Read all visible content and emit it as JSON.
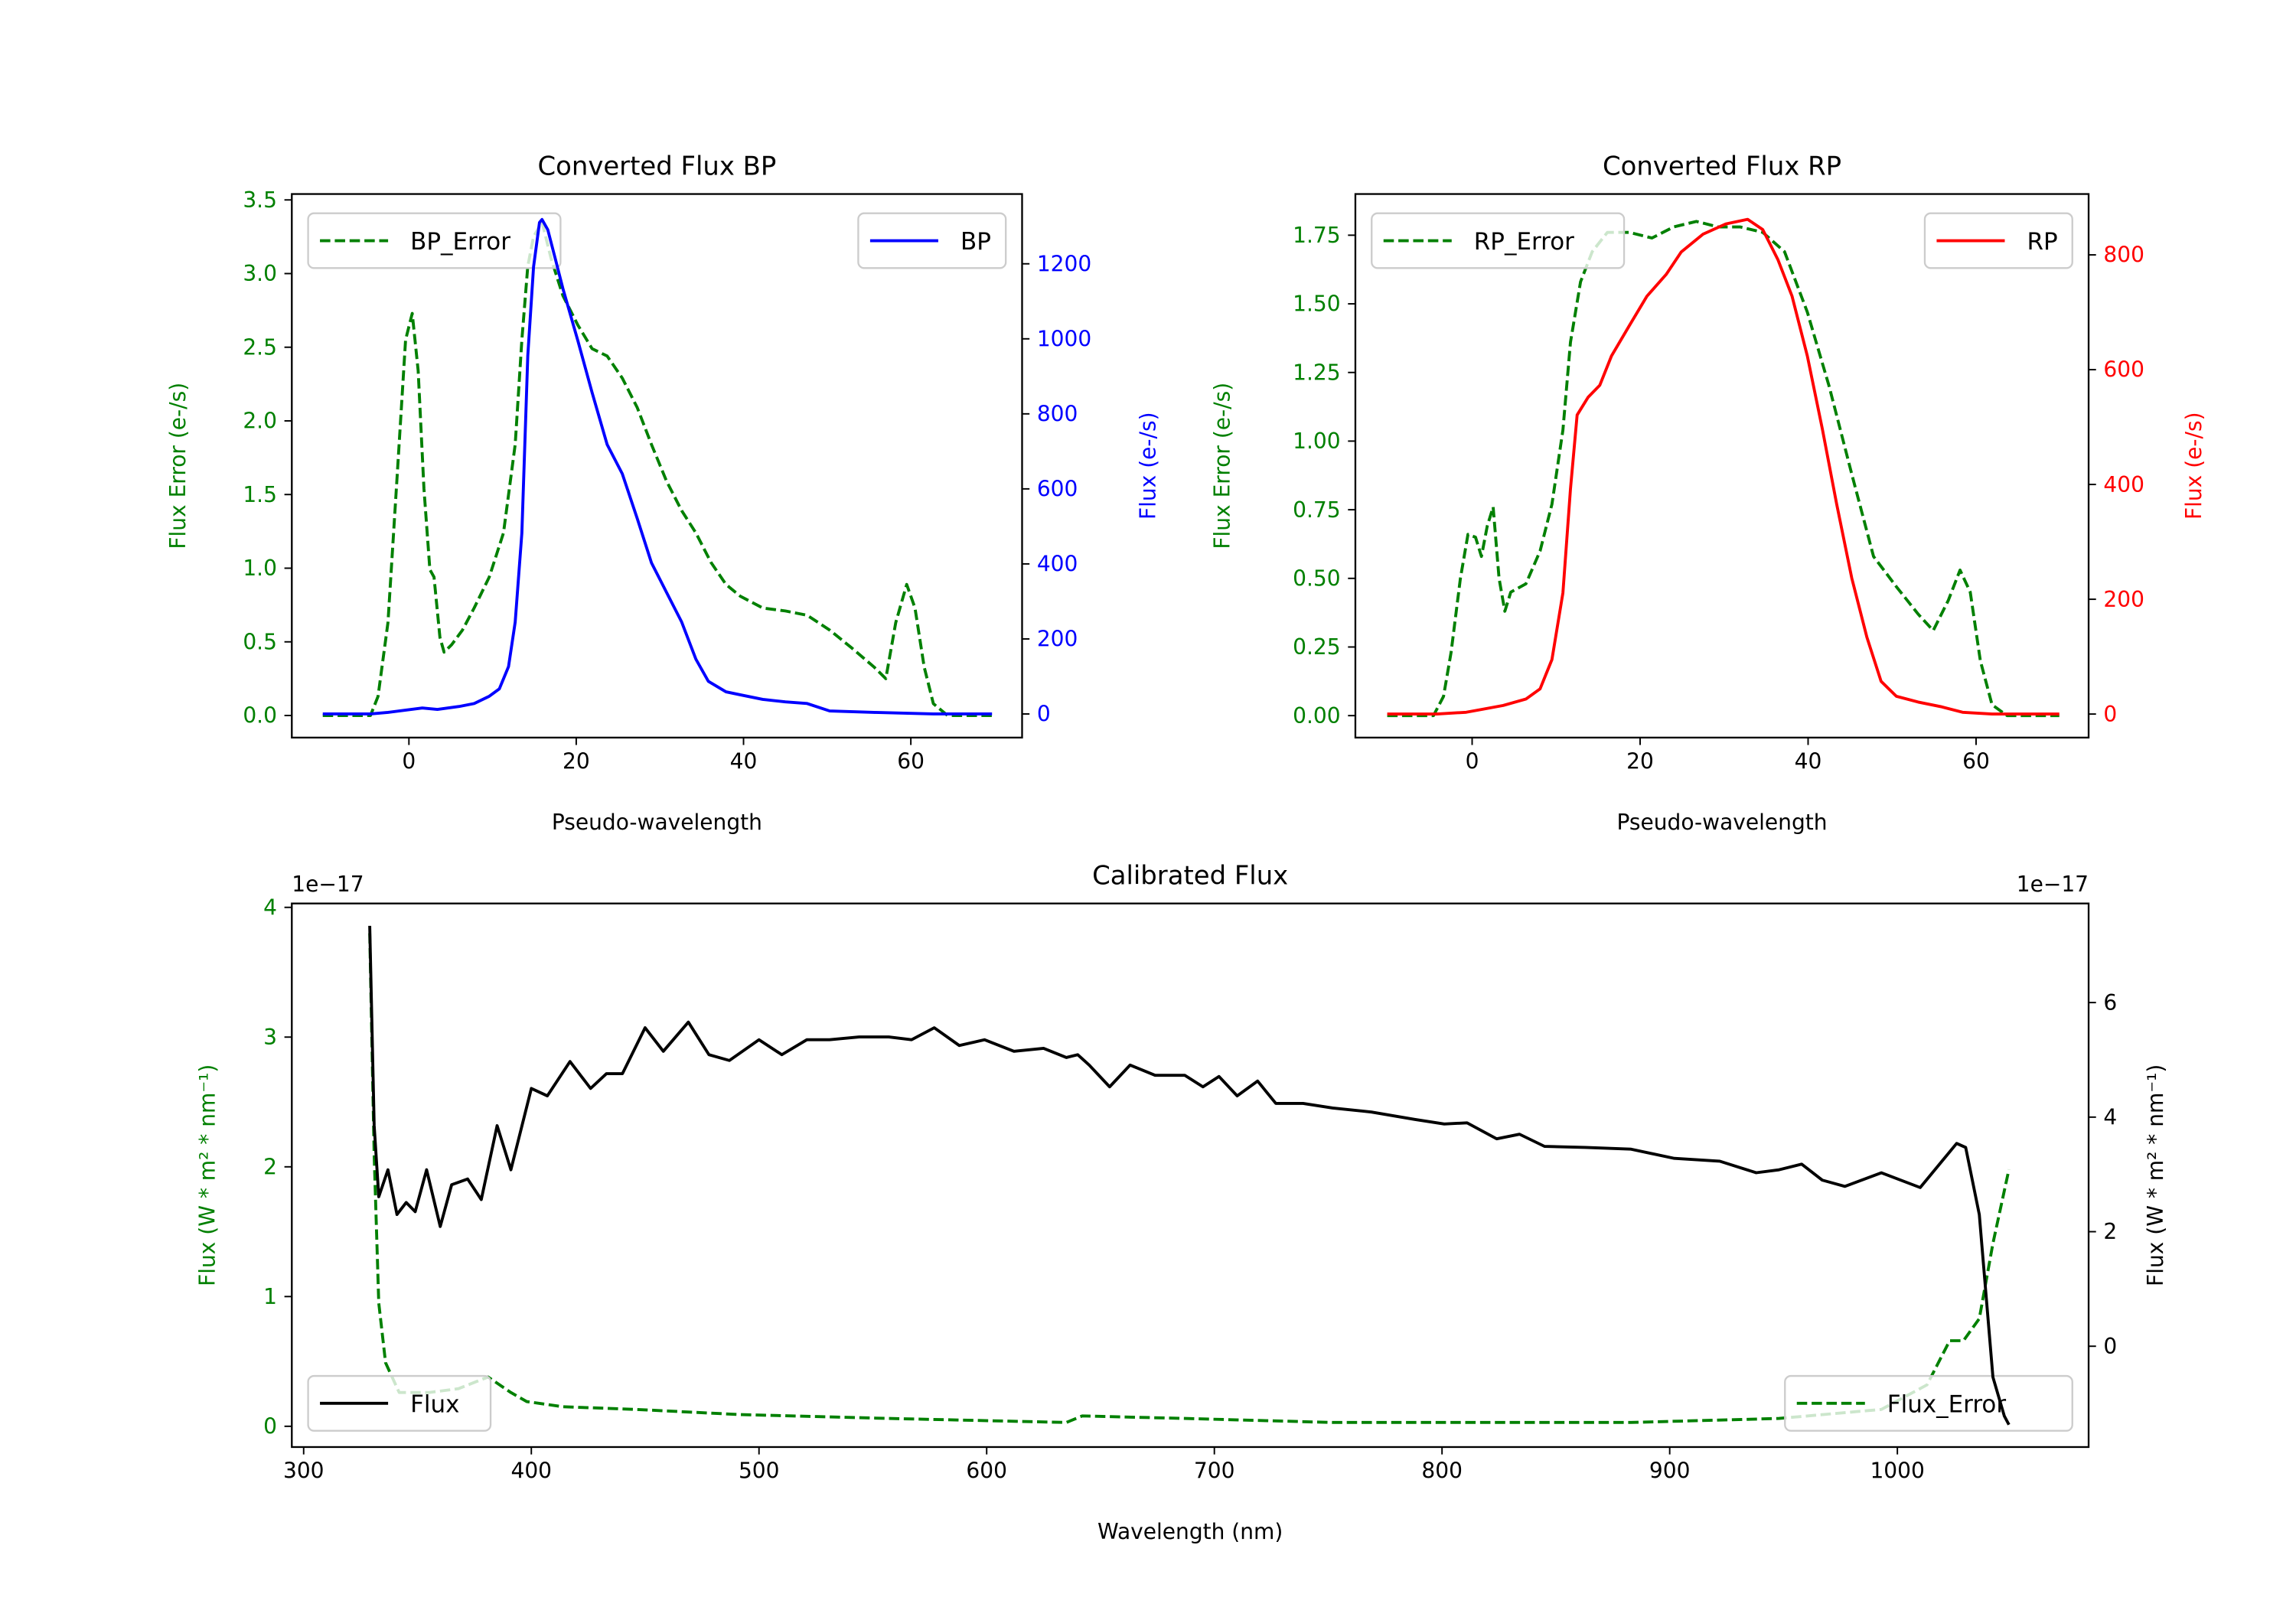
{
  "chart_data": [
    {
      "type": "line",
      "title": "Converted Flux BP",
      "xlabel": "Pseudo-wavelength",
      "ylabel_left": "Flux Error (e-/s)",
      "ylabel_right": "Flux (e-/s)",
      "left_color": "#008000",
      "right_color": "#0000ff",
      "xlim": [
        -14,
        73.3
      ],
      "ylim_left": [
        -0.15,
        3.54
      ],
      "ylim_right": [
        -63,
        1386
      ],
      "xticks": [
        {
          "v": 0,
          "label": "0"
        },
        {
          "v": 20,
          "label": "20"
        },
        {
          "v": 40,
          "label": "40"
        },
        {
          "v": 60,
          "label": "60"
        }
      ],
      "yticks_left": [
        {
          "v": 0,
          "label": "0.0"
        },
        {
          "v": 0.5,
          "label": "0.5"
        },
        {
          "v": 1,
          "label": "1.0"
        },
        {
          "v": 1.5,
          "label": "1.5"
        },
        {
          "v": 2,
          "label": "2.0"
        },
        {
          "v": 2.5,
          "label": "2.5"
        },
        {
          "v": 3,
          "label": "3.0"
        },
        {
          "v": 3.5,
          "label": "3.5"
        }
      ],
      "yticks_right": [
        {
          "v": 0,
          "label": "0"
        },
        {
          "v": 200,
          "label": "200"
        },
        {
          "v": 400,
          "label": "400"
        },
        {
          "v": 600,
          "label": "600"
        },
        {
          "v": 800,
          "label": "800"
        },
        {
          "v": 1000,
          "label": "1000"
        },
        {
          "v": 1200,
          "label": "1200"
        }
      ],
      "series": [
        {
          "name": "BP_Error",
          "axis": "left",
          "color": "#008000",
          "dash": true,
          "legend": "upper left",
          "x": [
            -10.3,
            -4.6,
            -3.7,
            -2.5,
            -1.4,
            -0.4,
            0.4,
            1.1,
            1.8,
            2.5,
            3.0,
            3.7,
            4.2,
            5.1,
            6.4,
            7.8,
            9.6,
            11.3,
            12.7,
            13.5,
            14.2,
            14.9,
            15.9,
            17.0,
            18.4,
            20.2,
            21.9,
            23.7,
            25.5,
            27.3,
            29.0,
            30.8,
            32.6,
            34.3,
            36.1,
            37.9,
            39.6,
            42.3,
            45.0,
            47.6,
            50.3,
            52.9,
            55.6,
            57.0,
            58.2,
            59.5,
            60.5,
            61.6,
            62.7,
            64.4,
            69.7
          ],
          "y": [
            0,
            0,
            0.13,
            0.63,
            1.64,
            2.55,
            2.73,
            2.34,
            1.54,
            0.99,
            0.94,
            0.53,
            0.43,
            0.48,
            0.58,
            0.73,
            0.94,
            1.24,
            1.84,
            2.55,
            3.05,
            3.25,
            3.35,
            3.1,
            2.85,
            2.65,
            2.49,
            2.44,
            2.29,
            2.09,
            1.84,
            1.59,
            1.39,
            1.24,
            1.04,
            0.89,
            0.81,
            0.73,
            0.71,
            0.68,
            0.58,
            0.46,
            0.33,
            0.25,
            0.63,
            0.89,
            0.73,
            0.33,
            0.08,
            0,
            0
          ]
        },
        {
          "name": "BP",
          "axis": "right",
          "color": "#0000ff",
          "dash": false,
          "legend": "upper right",
          "x": [
            -10.3,
            -4.6,
            -2.5,
            1.6,
            3.4,
            6.0,
            7.8,
            9.6,
            10.8,
            11.9,
            12.7,
            13.5,
            14.2,
            14.9,
            15.6,
            15.9,
            16.6,
            17.5,
            18.4,
            20.2,
            21.9,
            23.7,
            25.5,
            27.3,
            29.0,
            30.8,
            32.6,
            34.3,
            35.8,
            37.9,
            39.6,
            42.3,
            45.0,
            47.6,
            50.3,
            55.6,
            62.7,
            69.7
          ],
          "y": [
            0,
            0,
            4,
            16,
            12,
            20,
            28,
            47,
            67,
            126,
            245,
            482,
            955,
            1192,
            1310,
            1318,
            1291,
            1213,
            1134,
            995,
            857,
            718,
            640,
            521,
            403,
            324,
            245,
            146,
            87,
            59,
            51,
            39,
            32,
            28,
            8,
            4,
            0,
            0
          ]
        }
      ]
    },
    {
      "type": "line",
      "title": "Converted Flux RP",
      "xlabel": "Pseudo-wavelength",
      "ylabel_left": "Flux Error (e-/s)",
      "ylabel_right": "Flux (e-/s)",
      "left_color": "#008000",
      "right_color": "#ff0000",
      "xlim": [
        -13.9,
        73.4
      ],
      "ylim_left": [
        -0.08,
        1.9
      ],
      "ylim_right": [
        -41,
        906
      ],
      "xticks": [
        {
          "v": 0,
          "label": "0"
        },
        {
          "v": 20,
          "label": "20"
        },
        {
          "v": 40,
          "label": "40"
        },
        {
          "v": 60,
          "label": "60"
        }
      ],
      "yticks_left": [
        {
          "v": 0,
          "label": "0.00"
        },
        {
          "v": 0.25,
          "label": "0.25"
        },
        {
          "v": 0.5,
          "label": "0.50"
        },
        {
          "v": 0.75,
          "label": "0.75"
        },
        {
          "v": 1,
          "label": "1.00"
        },
        {
          "v": 1.25,
          "label": "1.25"
        },
        {
          "v": 1.5,
          "label": "1.50"
        },
        {
          "v": 1.75,
          "label": "1.75"
        }
      ],
      "yticks_right": [
        {
          "v": 0,
          "label": "0"
        },
        {
          "v": 200,
          "label": "200"
        },
        {
          "v": 400,
          "label": "400"
        },
        {
          "v": 600,
          "label": "600"
        },
        {
          "v": 800,
          "label": "800"
        }
      ],
      "series": [
        {
          "name": "RP_Error",
          "axis": "left",
          "color": "#008000",
          "dash": true,
          "legend": "upper left",
          "x": [
            -10.1,
            -4.6,
            -3.4,
            -2.5,
            -1.4,
            -0.5,
            0.4,
            1.1,
            1.8,
            2.5,
            3.2,
            3.9,
            4.6,
            6.4,
            8.1,
            9.5,
            10.8,
            11.7,
            12.9,
            14.3,
            16.1,
            18.7,
            21.4,
            24.0,
            26.7,
            29.3,
            31.9,
            34.6,
            37.2,
            39.9,
            42.5,
            45.2,
            47.8,
            50.5,
            53.1,
            54.9,
            56.7,
            58.1,
            59.3,
            60.5,
            61.9,
            63.7,
            69.9
          ],
          "y": [
            0,
            0,
            0.07,
            0.23,
            0.5,
            0.66,
            0.65,
            0.58,
            0.69,
            0.76,
            0.5,
            0.38,
            0.45,
            0.48,
            0.6,
            0.77,
            1.04,
            1.36,
            1.58,
            1.69,
            1.76,
            1.76,
            1.74,
            1.78,
            1.8,
            1.78,
            1.78,
            1.76,
            1.69,
            1.47,
            1.2,
            0.88,
            0.58,
            0.47,
            0.37,
            0.31,
            0.42,
            0.53,
            0.45,
            0.2,
            0.04,
            0,
            0
          ]
        },
        {
          "name": "RP",
          "axis": "right",
          "color": "#ff0000",
          "dash": false,
          "legend": "upper right",
          "x": [
            -10.1,
            -4.2,
            -0.7,
            1.1,
            3.7,
            6.4,
            8.1,
            9.5,
            10.8,
            11.7,
            12.5,
            13.8,
            15.2,
            16.6,
            18.7,
            20.8,
            23.1,
            24.9,
            27.5,
            30.2,
            32.8,
            34.6,
            36.4,
            38.1,
            39.9,
            41.7,
            43.4,
            45.2,
            47.0,
            48.7,
            50.5,
            53.1,
            55.8,
            58.4,
            61.9,
            69.9
          ],
          "y": [
            0,
            0,
            3,
            8,
            15,
            26,
            44,
            95,
            211,
            392,
            521,
            552,
            573,
            624,
            676,
            728,
            766,
            805,
            836,
            854,
            862,
            844,
            792,
            728,
            624,
            496,
            366,
            237,
            134,
            57,
            31,
            21,
            13,
            3,
            0,
            0
          ]
        }
      ]
    },
    {
      "type": "line",
      "title": "Calibrated Flux",
      "xlabel": "Wavelength (nm)",
      "ylabel_left": "Flux (W * m² * nm⁻¹)",
      "ylabel_right": "Flux (W * m² * nm⁻¹)",
      "left_color": "#008000",
      "right_color": "#000000",
      "offset_left": "1e−17",
      "offset_right": "1e−17",
      "xlim": [
        294.8,
        1084
      ],
      "ylim_left": [
        -0.16,
        4.03
      ],
      "ylim_right": [
        -1.76,
        7.73
      ],
      "xticks": [
        {
          "v": 300,
          "label": "300"
        },
        {
          "v": 400,
          "label": "400"
        },
        {
          "v": 500,
          "label": "500"
        },
        {
          "v": 600,
          "label": "600"
        },
        {
          "v": 700,
          "label": "700"
        },
        {
          "v": 800,
          "label": "800"
        },
        {
          "v": 900,
          "label": "900"
        },
        {
          "v": 1000,
          "label": "1000"
        }
      ],
      "yticks_left": [
        {
          "v": 0,
          "label": "0"
        },
        {
          "v": 1,
          "label": "1"
        },
        {
          "v": 2,
          "label": "2"
        },
        {
          "v": 3,
          "label": "3"
        },
        {
          "v": 4,
          "label": "4"
        }
      ],
      "yticks_right": [
        {
          "v": 0,
          "label": "0"
        },
        {
          "v": 2,
          "label": "2"
        },
        {
          "v": 4,
          "label": "4"
        },
        {
          "v": 6,
          "label": "6"
        }
      ],
      "series": [
        {
          "name": "Flux_Error",
          "axis": "left",
          "color": "#008000",
          "dash": true,
          "legend": "lower right",
          "x": [
            329,
            331,
            333,
            336,
            342,
            355,
            368,
            381,
            391,
            398,
            414,
            446,
            492,
            557,
            635,
            642,
            687,
            752,
            883,
            948,
            993,
            1013,
            1023,
            1029,
            1036,
            1042,
            1049
          ],
          "y": [
            3.8,
            2.09,
            0.95,
            0.49,
            0.26,
            0.26,
            0.29,
            0.38,
            0.26,
            0.19,
            0.15,
            0.13,
            0.09,
            0.06,
            0.03,
            0.08,
            0.06,
            0.03,
            0.03,
            0.06,
            0.13,
            0.32,
            0.66,
            0.66,
            0.83,
            1.41,
            1.98
          ]
        },
        {
          "name": "Flux",
          "axis": "right",
          "color": "#000000",
          "dash": false,
          "legend": "lower left",
          "x": [
            329,
            331,
            333,
            337,
            341,
            345,
            349,
            354,
            360,
            365,
            372,
            378,
            385,
            391,
            400,
            407,
            417,
            426,
            433,
            440,
            450,
            458,
            469,
            478,
            487,
            500,
            510,
            521,
            531,
            544,
            557,
            567,
            577,
            588,
            599,
            612,
            625,
            635,
            640,
            645,
            654,
            663,
            674,
            687,
            695,
            702,
            710,
            719,
            727,
            739,
            752,
            769,
            788,
            801,
            811,
            824,
            834,
            845,
            863,
            883,
            902,
            922,
            938,
            948,
            958,
            967,
            977,
            993,
            1010,
            1026,
            1030,
            1036,
            1042,
            1047,
            1049
          ],
          "y": [
            7.34,
            3.85,
            2.61,
            3.08,
            2.3,
            2.51,
            2.35,
            3.08,
            2.09,
            2.82,
            2.92,
            2.56,
            3.85,
            3.08,
            4.5,
            4.37,
            4.97,
            4.5,
            4.76,
            4.76,
            5.56,
            5.15,
            5.66,
            5.09,
            4.99,
            5.35,
            5.09,
            5.35,
            5.35,
            5.4,
            5.4,
            5.35,
            5.56,
            5.25,
            5.35,
            5.15,
            5.2,
            5.04,
            5.09,
            4.91,
            4.53,
            4.91,
            4.73,
            4.73,
            4.53,
            4.71,
            4.37,
            4.63,
            4.24,
            4.24,
            4.16,
            4.09,
            3.96,
            3.88,
            3.9,
            3.62,
            3.7,
            3.49,
            3.47,
            3.44,
            3.28,
            3.23,
            3.03,
            3.08,
            3.18,
            2.9,
            2.79,
            3.03,
            2.77,
            3.54,
            3.47,
            2.3,
            -0.54,
            -1.22,
            -1.37
          ]
        }
      ]
    }
  ]
}
